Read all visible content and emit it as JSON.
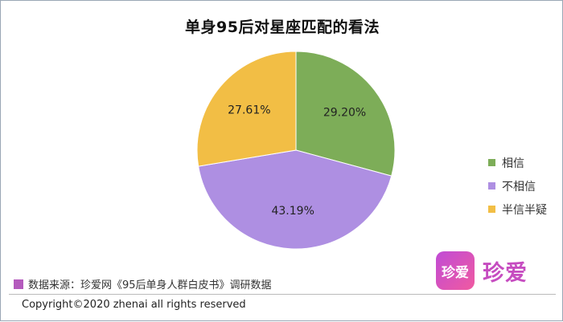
{
  "chart_data": {
    "type": "pie",
    "title": "单身95后对星座匹配的看法",
    "categories": [
      "相信",
      "不相信",
      "半信半疑"
    ],
    "values": [
      29.2,
      43.19,
      27.61
    ],
    "value_labels": [
      "29.20%",
      "43.19%",
      "27.61%"
    ],
    "colors": [
      "#7dad58",
      "#ae8fe2",
      "#f2be45"
    ],
    "start": "12 o'clock",
    "direction": "clockwise",
    "legend_position": "right"
  },
  "footer": {
    "source_text": "数据来源：珍爱网《95后单身人群白皮书》调研数据",
    "source_swatch_color": "#b45bbd",
    "copyright": "Copyright©2020 zhenai all rights reserved"
  },
  "logo": {
    "badge_text": "珍爱",
    "text": "珍爱"
  }
}
